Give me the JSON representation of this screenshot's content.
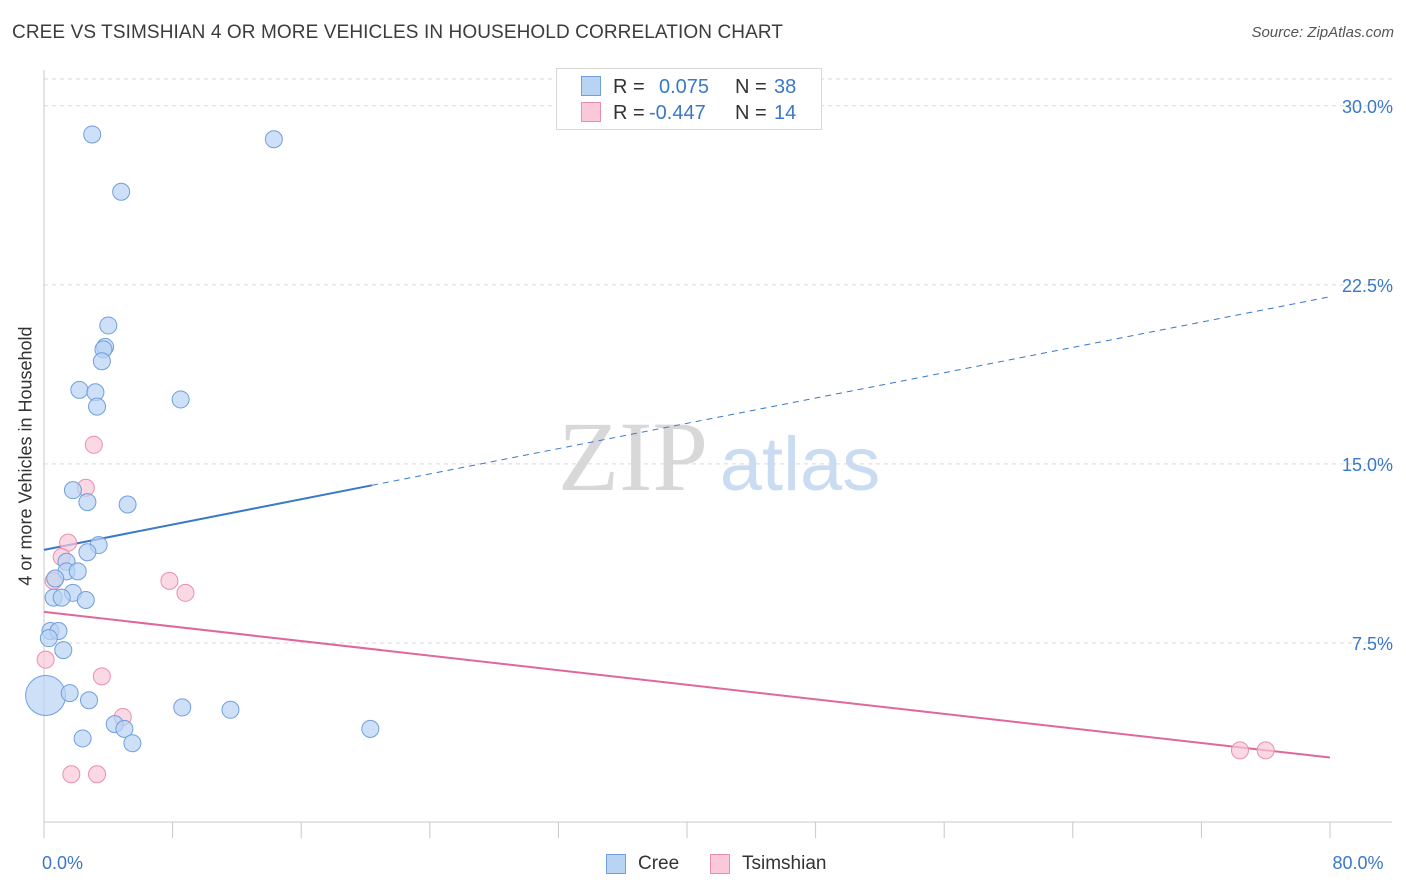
{
  "header": {
    "title": "CREE VS TSIMSHIAN 4 OR MORE VEHICLES IN HOUSEHOLD CORRELATION CHART",
    "source": "Source: ZipAtlas.com"
  },
  "watermark": {
    "zip": "ZIP",
    "atlas": "atlas"
  },
  "legend": {
    "rows": [
      {
        "swatch_color": "#a9c9f0",
        "r_label": "R =",
        "r_value": "0.075",
        "n_label": "N =",
        "n_value": "38"
      },
      {
        "swatch_color": "#f6b6cb",
        "r_label": "R =",
        "r_value": "-0.447",
        "n_label": "N =",
        "n_value": "14"
      }
    ]
  },
  "bottom_legend": {
    "items": [
      {
        "label": "Cree",
        "color": "#a9c9f0"
      },
      {
        "label": "Tsimshian",
        "color": "#f6b6cb"
      }
    ]
  },
  "colors": {
    "cree_fill": "#b9d3f3",
    "cree_stroke": "#6f9fdc",
    "cree_line": "#3a78c9",
    "tsim_fill": "#f9c9d8",
    "tsim_stroke": "#eb8eab",
    "tsim_line": "#e0679a",
    "tick_text": "#3a78c9",
    "grid": "#d9d9d9"
  },
  "chart_data": {
    "type": "scatter",
    "title": "CREE VS TSIMSHIAN 4 OR MORE VEHICLES IN HOUSEHOLD CORRELATION CHART",
    "xlabel": "",
    "ylabel": "4 or more Vehicles in Household",
    "xlim": [
      0,
      80
    ],
    "ylim": [
      0,
      31.5
    ],
    "x_tick_labels": [
      {
        "value": 0,
        "label": "0.0%"
      },
      {
        "value": 80,
        "label": "80.0%"
      }
    ],
    "y_ticks": [
      {
        "value": 7.5,
        "label": "7.5%"
      },
      {
        "value": 15.0,
        "label": "15.0%"
      },
      {
        "value": 22.5,
        "label": "22.5%"
      },
      {
        "value": 30.0,
        "label": "30.0%"
      }
    ],
    "grid": true,
    "legend_position": "top-center",
    "series": [
      {
        "name": "Cree",
        "r": 0.075,
        "n": 38,
        "trend": {
          "x0": 0,
          "y0": 11.4,
          "x1": 80,
          "y1": 22.0,
          "solid_until_x": 20.4
        },
        "points": [
          {
            "x": 3.0,
            "y": 28.8
          },
          {
            "x": 14.3,
            "y": 28.6
          },
          {
            "x": 4.8,
            "y": 26.4
          },
          {
            "x": 4.0,
            "y": 20.8
          },
          {
            "x": 3.8,
            "y": 19.9
          },
          {
            "x": 3.7,
            "y": 19.8
          },
          {
            "x": 3.6,
            "y": 19.3
          },
          {
            "x": 2.2,
            "y": 18.1
          },
          {
            "x": 3.2,
            "y": 18.0
          },
          {
            "x": 8.5,
            "y": 17.7
          },
          {
            "x": 3.3,
            "y": 17.4
          },
          {
            "x": 1.8,
            "y": 13.9
          },
          {
            "x": 2.7,
            "y": 13.4
          },
          {
            "x": 5.2,
            "y": 13.3
          },
          {
            "x": 3.4,
            "y": 11.6
          },
          {
            "x": 2.7,
            "y": 11.3
          },
          {
            "x": 1.4,
            "y": 10.9
          },
          {
            "x": 1.4,
            "y": 10.5
          },
          {
            "x": 2.1,
            "y": 10.5
          },
          {
            "x": 0.7,
            "y": 10.2
          },
          {
            "x": 1.8,
            "y": 9.6
          },
          {
            "x": 0.6,
            "y": 9.4
          },
          {
            "x": 1.1,
            "y": 9.4
          },
          {
            "x": 2.6,
            "y": 9.3
          },
          {
            "x": 0.4,
            "y": 8.0
          },
          {
            "x": 0.9,
            "y": 8.0
          },
          {
            "x": 0.3,
            "y": 7.7
          },
          {
            "x": 1.2,
            "y": 7.2
          },
          {
            "x": 0.1,
            "y": 5.3,
            "big": true
          },
          {
            "x": 1.6,
            "y": 5.4
          },
          {
            "x": 2.8,
            "y": 5.1
          },
          {
            "x": 8.6,
            "y": 4.8
          },
          {
            "x": 11.6,
            "y": 4.7
          },
          {
            "x": 4.4,
            "y": 4.1
          },
          {
            "x": 5.0,
            "y": 3.9
          },
          {
            "x": 20.3,
            "y": 3.9
          },
          {
            "x": 2.4,
            "y": 3.5
          },
          {
            "x": 5.5,
            "y": 3.3
          }
        ]
      },
      {
        "name": "Tsimshian",
        "r": -0.447,
        "n": 14,
        "trend": {
          "x0": 0,
          "y0": 8.8,
          "x1": 80,
          "y1": 2.7
        },
        "points": [
          {
            "x": 3.1,
            "y": 15.8
          },
          {
            "x": 2.6,
            "y": 14.0
          },
          {
            "x": 1.5,
            "y": 11.7
          },
          {
            "x": 1.1,
            "y": 11.1
          },
          {
            "x": 0.6,
            "y": 10.1
          },
          {
            "x": 7.8,
            "y": 10.1
          },
          {
            "x": 8.8,
            "y": 9.6
          },
          {
            "x": 0.1,
            "y": 6.8
          },
          {
            "x": 3.6,
            "y": 6.1
          },
          {
            "x": 4.9,
            "y": 4.4
          },
          {
            "x": 1.7,
            "y": 2.0
          },
          {
            "x": 3.3,
            "y": 2.0
          },
          {
            "x": 74.4,
            "y": 3.0
          },
          {
            "x": 76.0,
            "y": 3.0
          }
        ]
      }
    ]
  }
}
